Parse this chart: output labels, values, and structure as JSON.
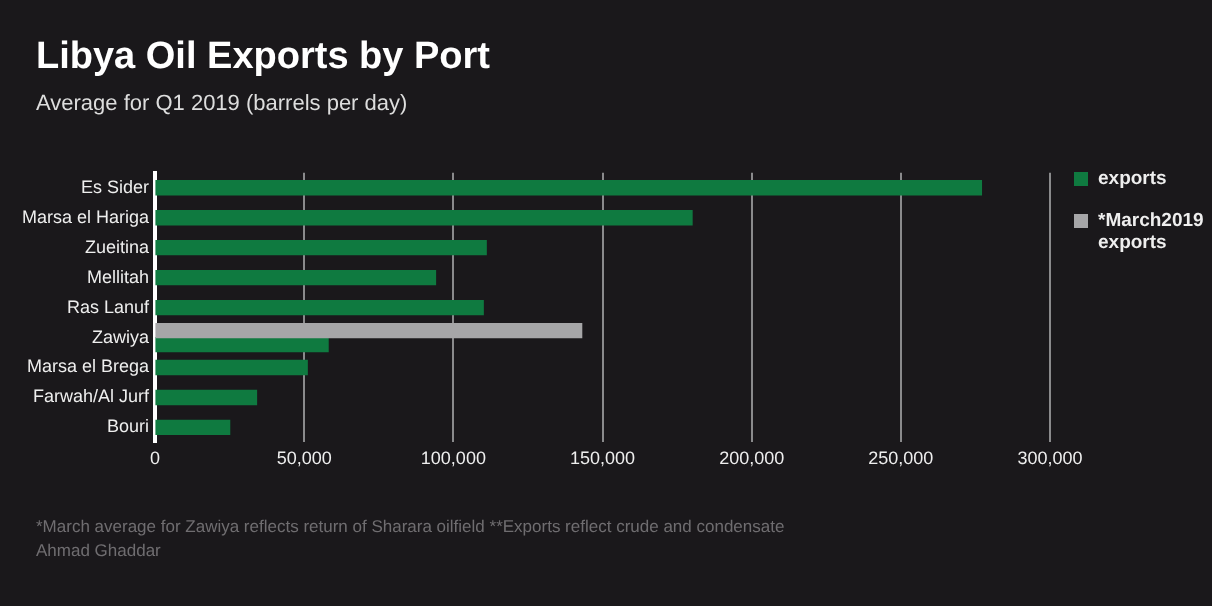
{
  "chart_data": {
    "type": "bar",
    "orientation": "horizontal",
    "title": "Libya Oil Exports by Port",
    "subtitle": "Average for Q1 2019 (barrels per day)",
    "categories": [
      "Es Sider",
      "Marsa el Hariga",
      "Zueitina",
      "Mellitah",
      "Ras Lanuf",
      "Zawiya",
      "Marsa el Brega",
      "Farwah/Al Jurf",
      "Bouri"
    ],
    "series": [
      {
        "name": "*March2019 exports",
        "color": "#a6a6a8",
        "values": [
          null,
          null,
          null,
          null,
          null,
          143000,
          null,
          null,
          null
        ]
      },
      {
        "name": "exports",
        "color": "#0f7a40",
        "values": [
          277000,
          180000,
          111000,
          94000,
          110000,
          58000,
          51000,
          34000,
          25000
        ]
      }
    ],
    "xlim": [
      0,
      300000
    ],
    "xticks": [
      {
        "value": 0,
        "label": "0"
      },
      {
        "value": 50000,
        "label": "50,000"
      },
      {
        "value": 100000,
        "label": "100,000"
      },
      {
        "value": 150000,
        "label": "150,000"
      },
      {
        "value": 200000,
        "label": "200,000"
      },
      {
        "value": 250000,
        "label": "250,000"
      },
      {
        "value": 300000,
        "label": "300,000"
      }
    ],
    "grid": "x",
    "legend": "top right",
    "annotations": [
      "*March average for Zawiya reflects return of Sharara oilfield **Exports reflect crude and condensate",
      "Ahmad Ghaddar"
    ]
  }
}
